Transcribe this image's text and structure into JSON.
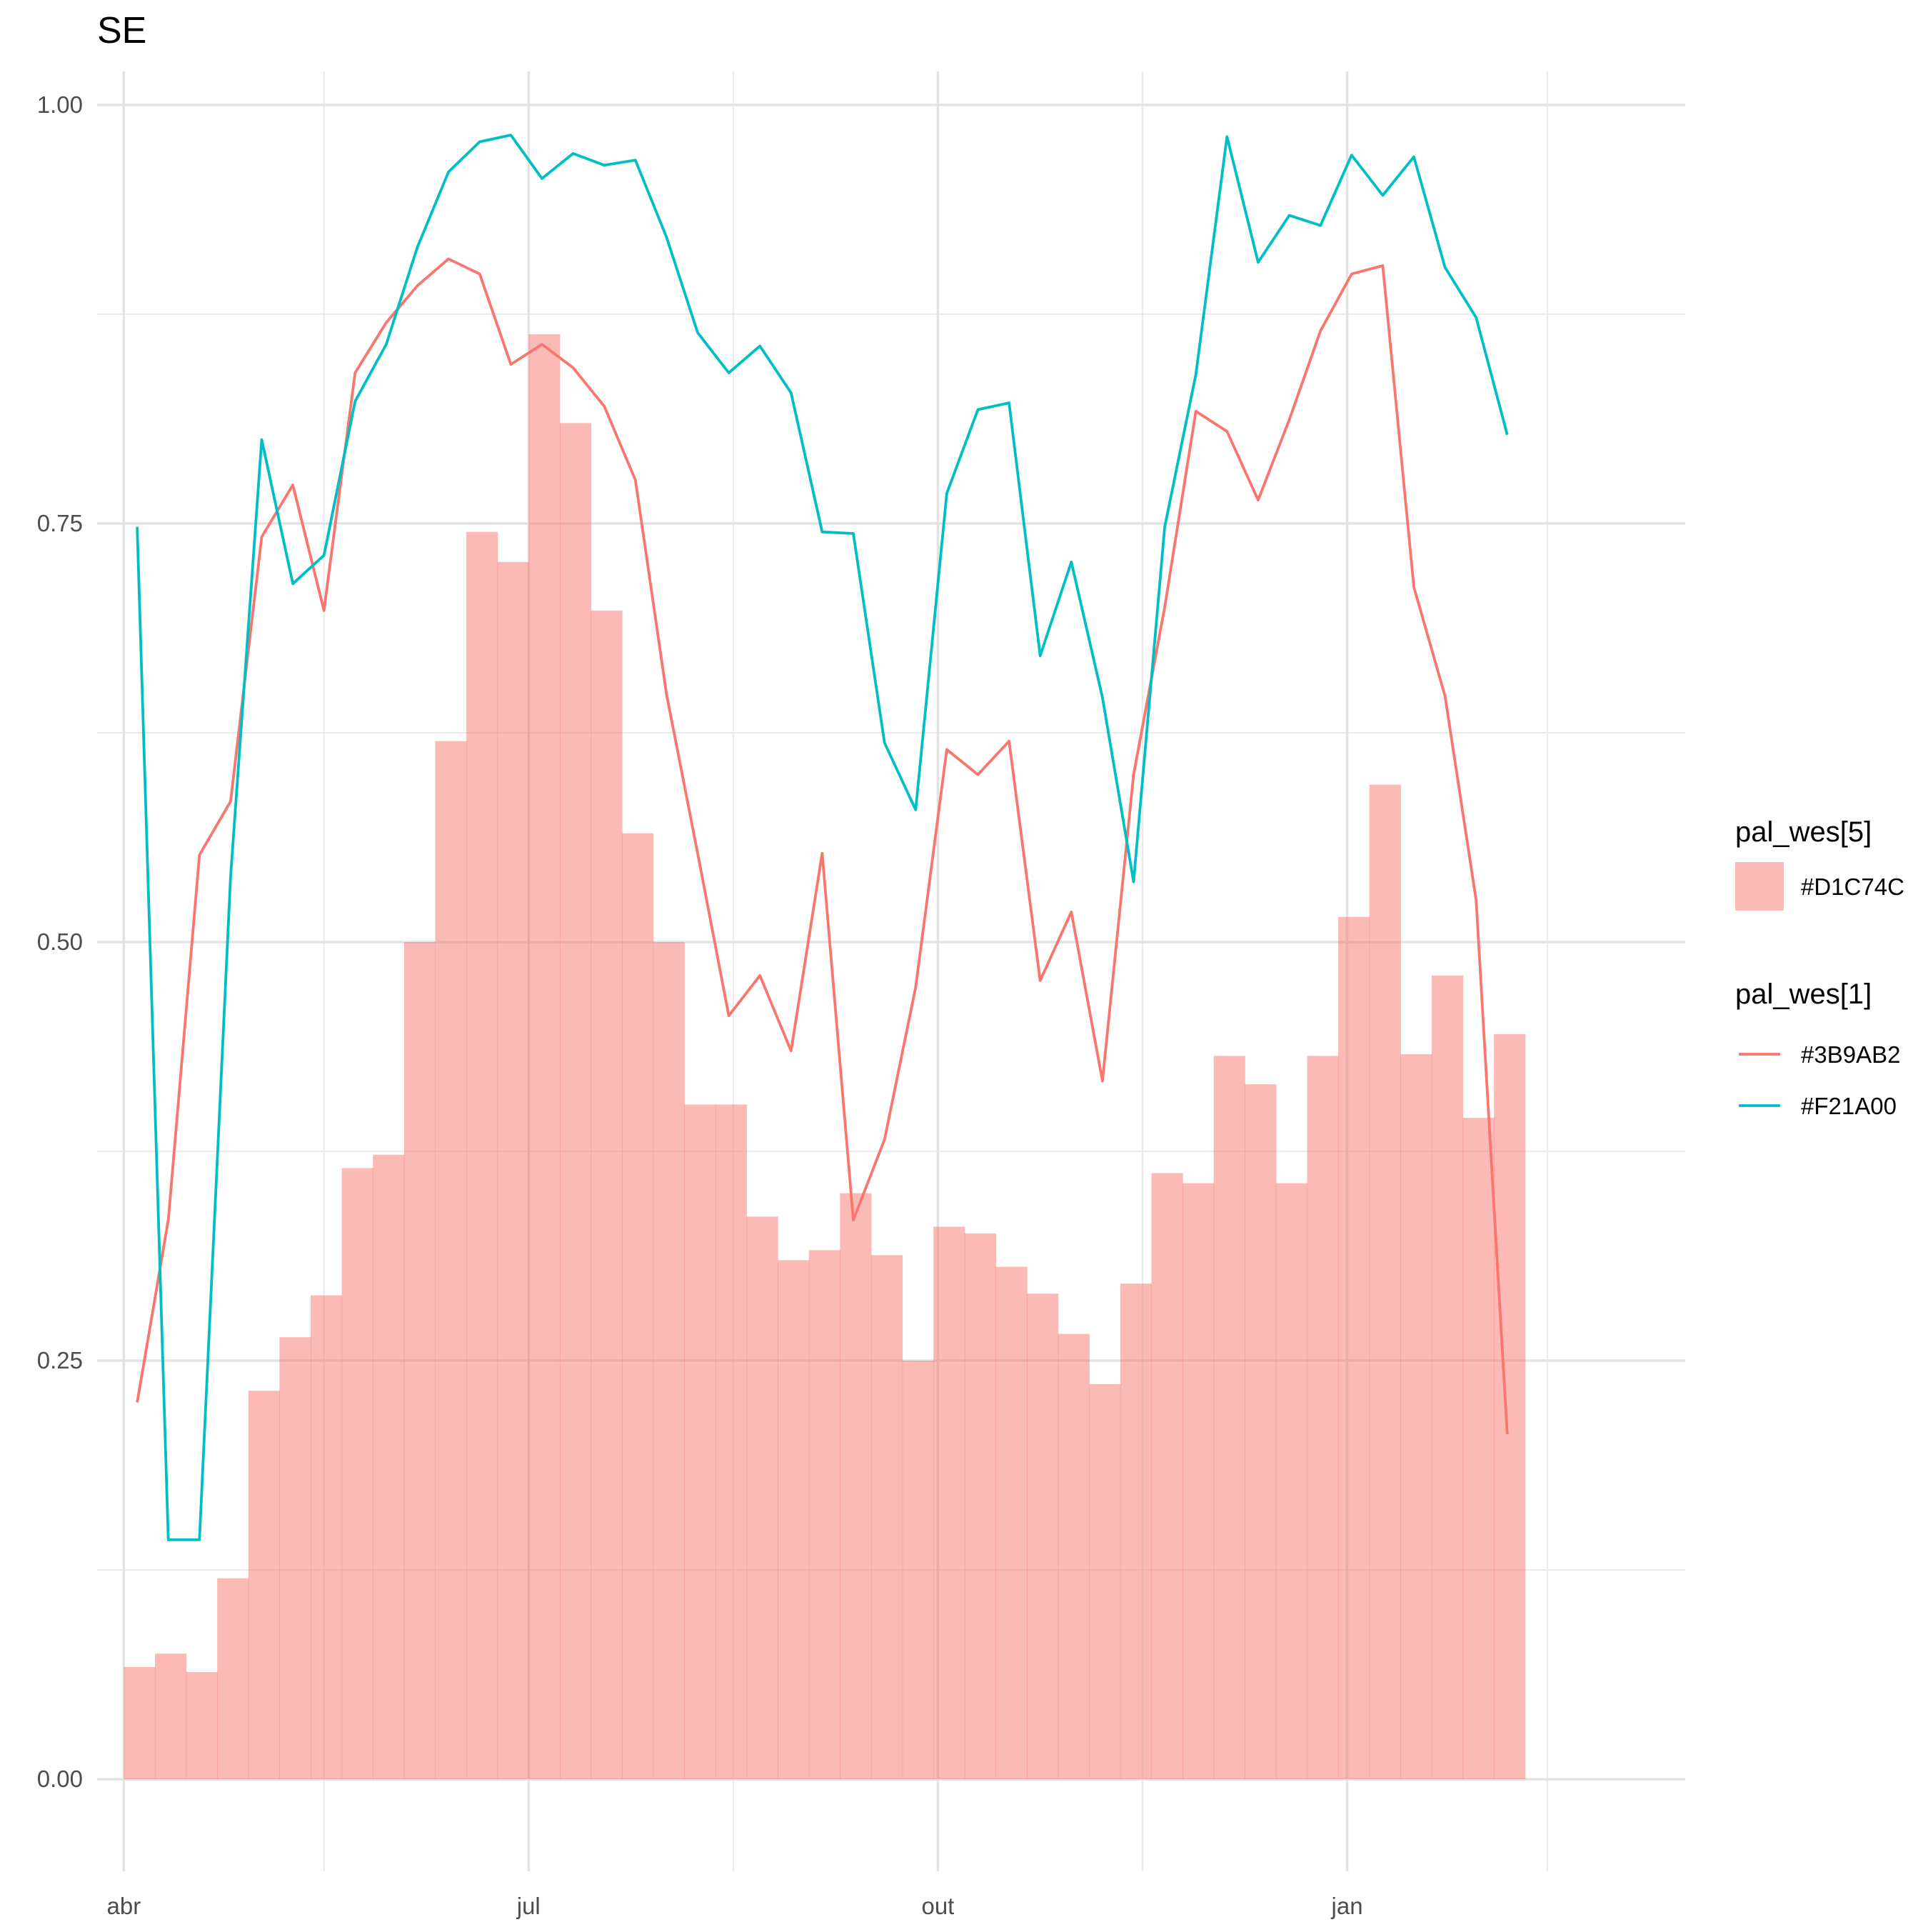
{
  "chart_data": {
    "type": "bar",
    "title": "SE",
    "xlabel": "",
    "ylabel": "",
    "x_axis": {
      "type": "date",
      "range": [
        "2020-03-26",
        "2021-03-18"
      ],
      "ticks": [
        {
          "date": "2020-04-01",
          "label": "abr"
        },
        {
          "date": "2020-07-01",
          "label": "jul"
        },
        {
          "date": "2020-10-01",
          "label": "out"
        },
        {
          "date": "2021-01-01",
          "label": "jan"
        }
      ],
      "minor_ticks": [
        "2020-05-16",
        "2020-08-16",
        "2020-11-16",
        "2021-02-15"
      ]
    },
    "y_axis": {
      "range": [
        -0.055,
        1.02
      ],
      "ticks": [
        0.0,
        0.25,
        0.5,
        0.75,
        1.0
      ],
      "tick_labels": [
        "0.00",
        "0.25",
        "0.50",
        "0.75",
        "1.00"
      ],
      "minor_ticks": [
        0.125,
        0.375,
        0.625,
        0.875
      ]
    },
    "grid": true,
    "legend_position": "right",
    "bars": {
      "name": "#D1C74C",
      "color": "#F8766D",
      "width_days": 7,
      "start": "2020-04-01",
      "values": [
        0.067,
        0.075,
        0.064,
        0.12,
        0.232,
        0.264,
        0.289,
        0.365,
        0.373,
        0.5,
        0.62,
        0.745,
        0.727,
        0.863,
        0.81,
        0.698,
        0.565,
        0.5,
        0.403,
        0.403,
        0.336,
        0.31,
        0.316,
        0.35,
        0.313,
        0.25,
        0.33,
        0.326,
        0.306,
        0.29,
        0.266,
        0.236,
        0.296,
        0.362,
        0.356,
        0.432,
        0.415,
        0.356,
        0.432,
        0.515,
        0.594,
        0.433,
        0.48,
        0.395,
        0.445
      ]
    },
    "series": [
      {
        "name": "#3B9AB2",
        "color": "#F8766D",
        "start": "2020-04-04",
        "step_days": 7,
        "values": [
          0.225,
          0.334,
          0.552,
          0.584,
          0.742,
          0.773,
          0.698,
          0.84,
          0.87,
          0.892,
          0.908,
          0.899,
          0.845,
          0.857,
          0.843,
          0.82,
          0.776,
          0.648,
          0.553,
          0.456,
          0.48,
          0.435,
          0.553,
          0.334,
          0.382,
          0.473,
          0.615,
          0.6,
          0.62,
          0.477,
          0.518,
          0.417,
          0.6,
          0.7,
          0.817,
          0.805,
          0.764,
          0.812,
          0.865,
          0.899,
          0.904,
          0.712,
          0.647,
          0.525,
          0.206
        ]
      },
      {
        "name": "#F21A00",
        "color": "#00BFC4",
        "start": "2020-04-04",
        "step_days": 7,
        "values": [
          0.748,
          0.143,
          0.143,
          0.539,
          0.8,
          0.714,
          0.731,
          0.823,
          0.857,
          0.915,
          0.96,
          0.978,
          0.982,
          0.956,
          0.971,
          0.964,
          0.967,
          0.921,
          0.864,
          0.84,
          0.856,
          0.828,
          0.745,
          0.744,
          0.619,
          0.579,
          0.768,
          0.818,
          0.822,
          0.671,
          0.727,
          0.646,
          0.536,
          0.748,
          0.839,
          0.981,
          0.906,
          0.934,
          0.928,
          0.97,
          0.946,
          0.969,
          0.903,
          0.873,
          0.803
        ]
      }
    ],
    "legend": {
      "fill_title": "pal_wes[5]",
      "fill_entries": [
        "#D1C74C"
      ],
      "line_title": "pal_wes[1]",
      "line_entries": [
        "#3B9AB2",
        "#F21A00"
      ]
    }
  }
}
